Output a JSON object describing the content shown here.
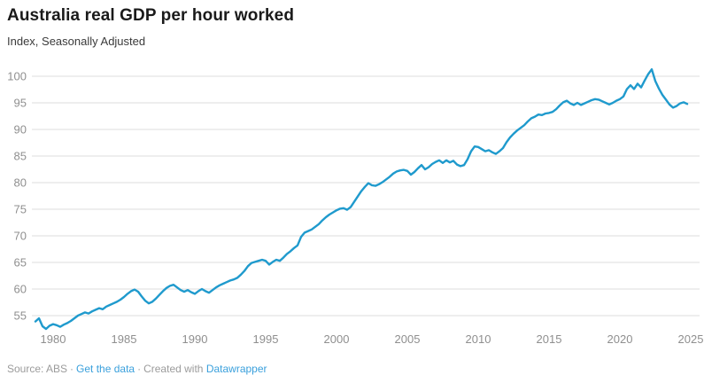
{
  "header": {
    "title": "Australia real GDP per hour worked",
    "subtitle": "Index, Seasonally Adjusted"
  },
  "footer": {
    "source_text": "Source: ABS",
    "separator": "·",
    "get_data_link": "Get the data",
    "created_with_text": "Created with",
    "datawrapper_link": "Datawrapper"
  },
  "colors": {
    "line": "#1f9acd",
    "grid": "#dddddd",
    "axis_text": "#8f8f8f",
    "title": "#1a1a1a",
    "subtitle": "#3a3a3a",
    "footer_text": "#9b9b9b",
    "link": "#3aa0dc"
  },
  "chart_data": {
    "type": "line",
    "title": "Australia real GDP per hour worked",
    "subtitle": "Index, Seasonally Adjusted",
    "xlabel": "",
    "ylabel": "Index, Seasonally Adjusted",
    "grid": true,
    "legend": "none",
    "xlim": [
      1978.5,
      2025.5
    ],
    "ylim": [
      52,
      102.5
    ],
    "x_ticks": [
      1980,
      1985,
      1990,
      1995,
      2000,
      2005,
      2010,
      2015,
      2020,
      2025
    ],
    "y_ticks": [
      55,
      60,
      65,
      70,
      75,
      80,
      85,
      90,
      95,
      100
    ],
    "series": [
      {
        "name": "Real GDP per hour worked (index)",
        "points": [
          [
            1978.75,
            53.9
          ],
          [
            1979.0,
            54.5
          ],
          [
            1979.25,
            53.0
          ],
          [
            1979.5,
            52.5
          ],
          [
            1979.75,
            53.1
          ],
          [
            1980.0,
            53.4
          ],
          [
            1980.25,
            53.2
          ],
          [
            1980.5,
            52.9
          ],
          [
            1980.75,
            53.3
          ],
          [
            1981.0,
            53.6
          ],
          [
            1981.25,
            54.0
          ],
          [
            1981.5,
            54.5
          ],
          [
            1981.75,
            55.0
          ],
          [
            1982.0,
            55.3
          ],
          [
            1982.25,
            55.6
          ],
          [
            1982.5,
            55.4
          ],
          [
            1982.75,
            55.8
          ],
          [
            1983.0,
            56.1
          ],
          [
            1983.25,
            56.4
          ],
          [
            1983.5,
            56.2
          ],
          [
            1983.75,
            56.7
          ],
          [
            1984.0,
            57.0
          ],
          [
            1984.25,
            57.3
          ],
          [
            1984.5,
            57.6
          ],
          [
            1984.75,
            58.0
          ],
          [
            1985.0,
            58.5
          ],
          [
            1985.25,
            59.1
          ],
          [
            1985.5,
            59.6
          ],
          [
            1985.75,
            59.9
          ],
          [
            1986.0,
            59.5
          ],
          [
            1986.25,
            58.6
          ],
          [
            1986.5,
            57.8
          ],
          [
            1986.75,
            57.3
          ],
          [
            1987.0,
            57.6
          ],
          [
            1987.25,
            58.2
          ],
          [
            1987.5,
            58.9
          ],
          [
            1987.75,
            59.6
          ],
          [
            1988.0,
            60.2
          ],
          [
            1988.25,
            60.6
          ],
          [
            1988.5,
            60.8
          ],
          [
            1988.75,
            60.3
          ],
          [
            1989.0,
            59.8
          ],
          [
            1989.25,
            59.5
          ],
          [
            1989.5,
            59.8
          ],
          [
            1989.75,
            59.4
          ],
          [
            1990.0,
            59.1
          ],
          [
            1990.25,
            59.6
          ],
          [
            1990.5,
            60.0
          ],
          [
            1990.75,
            59.6
          ],
          [
            1991.0,
            59.3
          ],
          [
            1991.25,
            59.8
          ],
          [
            1991.5,
            60.3
          ],
          [
            1991.75,
            60.7
          ],
          [
            1992.0,
            61.0
          ],
          [
            1992.25,
            61.3
          ],
          [
            1992.5,
            61.6
          ],
          [
            1992.75,
            61.8
          ],
          [
            1993.0,
            62.1
          ],
          [
            1993.25,
            62.7
          ],
          [
            1993.5,
            63.4
          ],
          [
            1993.75,
            64.3
          ],
          [
            1994.0,
            64.9
          ],
          [
            1994.25,
            65.1
          ],
          [
            1994.5,
            65.3
          ],
          [
            1994.75,
            65.5
          ],
          [
            1995.0,
            65.3
          ],
          [
            1995.25,
            64.6
          ],
          [
            1995.5,
            65.1
          ],
          [
            1995.75,
            65.5
          ],
          [
            1996.0,
            65.3
          ],
          [
            1996.25,
            65.9
          ],
          [
            1996.5,
            66.6
          ],
          [
            1996.75,
            67.1
          ],
          [
            1997.0,
            67.7
          ],
          [
            1997.25,
            68.2
          ],
          [
            1997.5,
            69.8
          ],
          [
            1997.75,
            70.6
          ],
          [
            1998.0,
            70.9
          ],
          [
            1998.25,
            71.2
          ],
          [
            1998.5,
            71.7
          ],
          [
            1998.75,
            72.2
          ],
          [
            1999.0,
            72.9
          ],
          [
            1999.25,
            73.5
          ],
          [
            1999.5,
            74.0
          ],
          [
            1999.75,
            74.4
          ],
          [
            2000.0,
            74.8
          ],
          [
            2000.25,
            75.1
          ],
          [
            2000.5,
            75.2
          ],
          [
            2000.75,
            74.9
          ],
          [
            2001.0,
            75.4
          ],
          [
            2001.25,
            76.4
          ],
          [
            2001.5,
            77.4
          ],
          [
            2001.75,
            78.4
          ],
          [
            2002.0,
            79.2
          ],
          [
            2002.25,
            79.9
          ],
          [
            2002.5,
            79.5
          ],
          [
            2002.75,
            79.4
          ],
          [
            2003.0,
            79.7
          ],
          [
            2003.25,
            80.1
          ],
          [
            2003.5,
            80.6
          ],
          [
            2003.75,
            81.1
          ],
          [
            2004.0,
            81.7
          ],
          [
            2004.25,
            82.1
          ],
          [
            2004.5,
            82.3
          ],
          [
            2004.75,
            82.4
          ],
          [
            2005.0,
            82.2
          ],
          [
            2005.25,
            81.5
          ],
          [
            2005.5,
            82.0
          ],
          [
            2005.75,
            82.7
          ],
          [
            2006.0,
            83.3
          ],
          [
            2006.25,
            82.5
          ],
          [
            2006.5,
            82.9
          ],
          [
            2006.75,
            83.5
          ],
          [
            2007.0,
            83.9
          ],
          [
            2007.25,
            84.2
          ],
          [
            2007.5,
            83.7
          ],
          [
            2007.75,
            84.2
          ],
          [
            2008.0,
            83.8
          ],
          [
            2008.25,
            84.1
          ],
          [
            2008.5,
            83.4
          ],
          [
            2008.75,
            83.1
          ],
          [
            2009.0,
            83.3
          ],
          [
            2009.25,
            84.4
          ],
          [
            2009.5,
            85.9
          ],
          [
            2009.75,
            86.8
          ],
          [
            2010.0,
            86.7
          ],
          [
            2010.25,
            86.3
          ],
          [
            2010.5,
            85.9
          ],
          [
            2010.75,
            86.1
          ],
          [
            2011.0,
            85.7
          ],
          [
            2011.25,
            85.4
          ],
          [
            2011.5,
            85.9
          ],
          [
            2011.75,
            86.5
          ],
          [
            2012.0,
            87.6
          ],
          [
            2012.25,
            88.5
          ],
          [
            2012.5,
            89.2
          ],
          [
            2012.75,
            89.8
          ],
          [
            2013.0,
            90.3
          ],
          [
            2013.25,
            90.8
          ],
          [
            2013.5,
            91.5
          ],
          [
            2013.75,
            92.1
          ],
          [
            2014.0,
            92.4
          ],
          [
            2014.25,
            92.8
          ],
          [
            2014.5,
            92.7
          ],
          [
            2014.75,
            93.0
          ],
          [
            2015.0,
            93.1
          ],
          [
            2015.25,
            93.3
          ],
          [
            2015.5,
            93.8
          ],
          [
            2015.75,
            94.5
          ],
          [
            2016.0,
            95.1
          ],
          [
            2016.25,
            95.4
          ],
          [
            2016.5,
            94.9
          ],
          [
            2016.75,
            94.6
          ],
          [
            2017.0,
            95.0
          ],
          [
            2017.25,
            94.6
          ],
          [
            2017.5,
            94.9
          ],
          [
            2017.75,
            95.2
          ],
          [
            2018.0,
            95.5
          ],
          [
            2018.25,
            95.7
          ],
          [
            2018.5,
            95.6
          ],
          [
            2018.75,
            95.3
          ],
          [
            2019.0,
            95.0
          ],
          [
            2019.25,
            94.7
          ],
          [
            2019.5,
            95.0
          ],
          [
            2019.75,
            95.4
          ],
          [
            2020.0,
            95.7
          ],
          [
            2020.25,
            96.2
          ],
          [
            2020.5,
            97.6
          ],
          [
            2020.75,
            98.3
          ],
          [
            2021.0,
            97.6
          ],
          [
            2021.25,
            98.6
          ],
          [
            2021.5,
            97.9
          ],
          [
            2021.75,
            99.2
          ],
          [
            2022.0,
            100.4
          ],
          [
            2022.25,
            101.3
          ],
          [
            2022.5,
            99.1
          ],
          [
            2022.75,
            97.7
          ],
          [
            2023.0,
            96.5
          ],
          [
            2023.25,
            95.6
          ],
          [
            2023.5,
            94.7
          ],
          [
            2023.75,
            94.1
          ],
          [
            2024.0,
            94.4
          ],
          [
            2024.25,
            94.9
          ],
          [
            2024.5,
            95.1
          ],
          [
            2024.75,
            94.8
          ]
        ]
      }
    ]
  }
}
